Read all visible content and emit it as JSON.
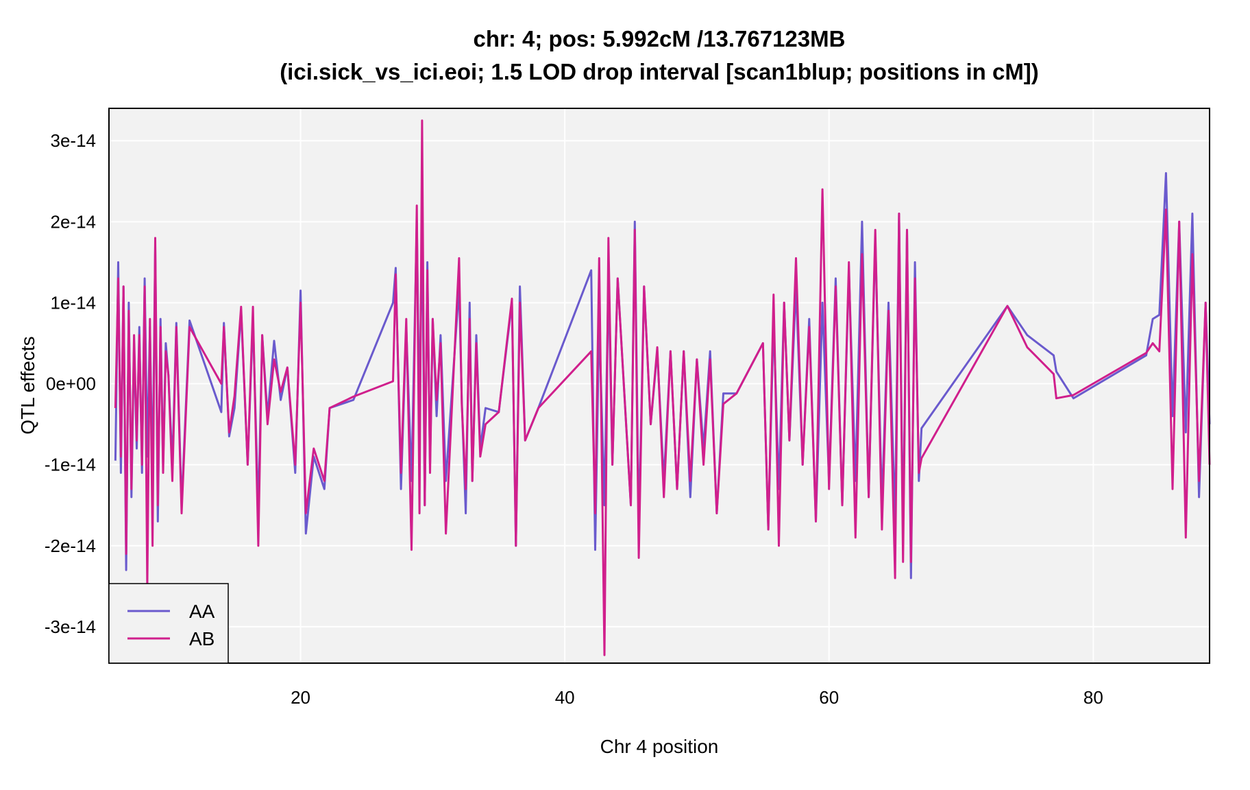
{
  "chart_data": {
    "type": "line",
    "title": "chr: 4; pos: 5.992cM /13.767123MB",
    "subtitle": "(ici.sick_vs_ici.eoi; 1.5 LOD drop interval [scan1blup; positions in cM])",
    "xlabel": "Chr 4 position",
    "ylabel": "QTL effects",
    "xlim": [
      5.5,
      88.8
    ],
    "ylim": [
      -3.45e-14,
      3.4e-14
    ],
    "x_ticks": [
      20,
      40,
      60,
      80
    ],
    "x_tick_labels": [
      "20",
      "40",
      "60",
      "80"
    ],
    "y_ticks": [
      -3e-14,
      -2e-14,
      -1e-14,
      0,
      1e-14,
      2e-14,
      3e-14
    ],
    "y_tick_labels": [
      "-3e-14",
      "-2e-14",
      "-1e-14",
      "0e+00",
      "1e-14",
      "2e-14",
      "3e-14"
    ],
    "grid": true,
    "background_color": "#f2f2f2",
    "legend_position": "bottom-left",
    "series": [
      {
        "name": "AA",
        "color": "#6a5acd",
        "x": [
          5.99,
          6.2,
          6.4,
          6.6,
          6.8,
          7.0,
          7.2,
          7.4,
          7.6,
          7.8,
          8.0,
          8.2,
          8.4,
          8.6,
          8.8,
          9.0,
          9.2,
          9.4,
          9.6,
          9.8,
          10.0,
          10.3,
          10.6,
          11.0,
          11.6,
          14.0,
          14.2,
          14.6,
          15.0,
          15.5,
          16.0,
          16.4,
          16.8,
          17.1,
          17.5,
          18.0,
          18.5,
          19.0,
          19.6,
          20.0,
          20.4,
          21.0,
          21.8,
          22.2,
          24.0,
          27.0,
          27.2,
          27.6,
          28.0,
          28.4,
          28.8,
          29.0,
          29.2,
          29.4,
          29.6,
          29.8,
          30.0,
          30.3,
          30.6,
          31.0,
          32.0,
          32.2,
          32.5,
          32.8,
          33.0,
          33.3,
          33.6,
          34.0,
          35.0,
          36.0,
          36.3,
          36.6,
          37.0,
          38.0,
          42.0,
          42.3,
          42.6,
          43.0,
          43.3,
          43.6,
          44.0,
          45.0,
          45.3,
          45.6,
          46.0,
          46.5,
          47.0,
          47.5,
          48.0,
          48.5,
          49.0,
          49.5,
          50.0,
          50.5,
          51.0,
          51.5,
          52.0,
          53.0,
          55.0,
          55.4,
          55.8,
          56.2,
          56.6,
          57.0,
          57.5,
          58.0,
          58.5,
          59.0,
          59.5,
          60.0,
          60.5,
          61.0,
          61.5,
          62.0,
          62.5,
          63.0,
          63.5,
          64.0,
          64.5,
          65.0,
          65.3,
          65.6,
          65.9,
          66.2,
          66.5,
          66.8,
          67.0,
          73.5,
          75.0,
          77.0,
          77.2,
          78.5,
          84.0,
          84.5,
          85.0,
          85.5,
          86.0,
          86.5,
          87.0,
          87.5,
          88.0,
          88.5,
          88.8
        ],
        "values": [
          -9.5e-15,
          1.5e-14,
          -1.1e-14,
          1.2e-14,
          -2.3e-14,
          1e-14,
          -1.4e-14,
          5e-15,
          -8e-15,
          7e-15,
          -1.1e-14,
          1.3e-14,
          -9e-15,
          7e-15,
          -1.2e-14,
          1.7e-14,
          -1.7e-14,
          8e-15,
          -1e-14,
          5e-15,
          1e-15,
          -1e-14,
          7.5e-15,
          -1.5e-14,
          7.8e-15,
          -3.5e-15,
          7.5e-15,
          -6.5e-15,
          -3e-15,
          9e-15,
          -1e-14,
          8e-15,
          -1.6e-14,
          6e-15,
          -4e-15,
          5.3e-15,
          -2e-15,
          2e-15,
          -1.1e-14,
          1.15e-14,
          -1.85e-14,
          -9e-15,
          -1.3e-14,
          -3e-15,
          -2e-15,
          1e-14,
          1.43e-14,
          -1.3e-14,
          7e-15,
          -1.2e-14,
          2e-14,
          -5e-15,
          2.1e-14,
          -1.5e-14,
          1.5e-14,
          -1e-14,
          8e-15,
          -4e-15,
          6e-15,
          -1.2e-14,
          1.2e-14,
          -2e-15,
          -1.6e-14,
          1e-14,
          -1.2e-14,
          6e-15,
          -8e-15,
          -3e-15,
          -3.5e-15,
          1e-14,
          -2e-14,
          1.2e-14,
          -7e-15,
          -3e-15,
          1.4e-14,
          -2.05e-14,
          8e-15,
          -1.5e-14,
          1.3e-14,
          -1e-14,
          1.3e-14,
          -1.5e-14,
          2e-14,
          -1.8e-14,
          1.2e-14,
          -5e-15,
          4e-15,
          -1.2e-14,
          4e-15,
          -1.3e-14,
          4e-15,
          -1.4e-14,
          3e-15,
          -8e-15,
          4e-15,
          -1.6e-14,
          -1.2e-15,
          -1.2e-15,
          5e-15,
          -1.8e-14,
          8e-15,
          -1.3e-14,
          1e-14,
          -7e-15,
          1.2e-14,
          -1e-14,
          8e-15,
          -1.7e-14,
          1e-14,
          -1.2e-14,
          1.3e-14,
          -1.5e-14,
          1.4e-14,
          -1.2e-14,
          2e-14,
          -1.4e-14,
          1.8e-14,
          -1.5e-14,
          1e-14,
          -1.7e-14,
          2.1e-14,
          -1.9e-14,
          1.9e-14,
          -2.4e-14,
          1.5e-14,
          -1.2e-14,
          -5.5e-15,
          9.6e-15,
          6e-15,
          3.5e-15,
          1.5e-15,
          -1.8e-15,
          3.5e-15,
          8e-15,
          8.5e-15,
          2.6e-14,
          -4e-15,
          2e-14,
          -6e-15,
          2.1e-14,
          -1.4e-14,
          1e-14,
          -5e-15
        ],
        "legend_label": "AA"
      },
      {
        "name": "AB",
        "color": "#d01f8c",
        "x": [
          5.99,
          6.2,
          6.4,
          6.6,
          6.8,
          7.0,
          7.2,
          7.4,
          7.6,
          7.8,
          8.0,
          8.2,
          8.4,
          8.6,
          8.8,
          9.0,
          9.2,
          9.4,
          9.6,
          9.8,
          10.0,
          10.3,
          10.6,
          11.0,
          11.6,
          14.0,
          14.2,
          14.6,
          15.0,
          15.5,
          16.0,
          16.4,
          16.8,
          17.1,
          17.5,
          18.0,
          18.5,
          19.0,
          19.6,
          20.0,
          20.4,
          21.0,
          21.8,
          22.2,
          24.0,
          27.0,
          27.2,
          27.6,
          28.0,
          28.4,
          28.8,
          29.0,
          29.2,
          29.4,
          29.6,
          29.8,
          30.0,
          30.3,
          30.6,
          31.0,
          32.0,
          32.2,
          32.5,
          32.8,
          33.0,
          33.3,
          33.6,
          34.0,
          35.0,
          36.0,
          36.3,
          36.6,
          37.0,
          38.0,
          42.0,
          42.3,
          42.6,
          43.0,
          43.3,
          43.6,
          44.0,
          45.0,
          45.3,
          45.6,
          46.0,
          46.5,
          47.0,
          47.5,
          48.0,
          48.5,
          49.0,
          49.5,
          50.0,
          50.5,
          51.0,
          51.5,
          52.0,
          53.0,
          55.0,
          55.4,
          55.8,
          56.2,
          56.6,
          57.0,
          57.5,
          58.0,
          58.5,
          59.0,
          59.5,
          60.0,
          60.5,
          61.0,
          61.5,
          62.0,
          62.5,
          63.0,
          63.5,
          64.0,
          64.5,
          65.0,
          65.3,
          65.6,
          65.9,
          66.2,
          66.5,
          66.8,
          67.0,
          73.5,
          75.0,
          77.0,
          77.2,
          78.5,
          84.0,
          84.5,
          85.0,
          85.5,
          86.0,
          86.5,
          87.0,
          87.5,
          88.0,
          88.5,
          88.8
        ],
        "values": [
          -3e-15,
          1.3e-14,
          -9e-15,
          1.2e-14,
          -2.1e-14,
          9e-15,
          -1.3e-14,
          6e-15,
          -7e-15,
          6e-15,
          -1e-14,
          1.2e-14,
          -2.5e-14,
          8e-15,
          -2e-14,
          1.8e-14,
          -1.5e-14,
          7e-15,
          -1.1e-14,
          4e-15,
          1e-15,
          -1.2e-14,
          7e-15,
          -1.6e-14,
          7e-15,
          0,
          7e-15,
          -6e-15,
          -1.5e-15,
          9.5e-15,
          -1e-14,
          9.5e-15,
          -2e-14,
          6e-15,
          -5e-15,
          3e-15,
          -1e-15,
          2e-15,
          -1e-14,
          1e-14,
          -1.6e-14,
          -8e-15,
          -1.2e-14,
          -3e-15,
          -1.6e-15,
          3e-16,
          1.35e-14,
          -1.1e-14,
          8e-15,
          -2.05e-14,
          2.2e-14,
          -1.6e-14,
          3.25e-14,
          -1.5e-14,
          1.4e-14,
          -1.1e-14,
          8e-15,
          -2e-15,
          5e-15,
          -1.85e-14,
          1.55e-14,
          -2.5e-15,
          -1.3e-14,
          8e-15,
          -1.2e-14,
          5e-15,
          -9e-15,
          -5e-15,
          -3.5e-15,
          1.05e-14,
          -2e-14,
          1e-14,
          -7e-15,
          -3e-15,
          4e-15,
          -1.6e-14,
          1.55e-14,
          -3.35e-14,
          1.8e-14,
          -1e-14,
          1.3e-14,
          -1.5e-14,
          1.9e-14,
          -2.15e-14,
          1.2e-14,
          -5e-15,
          4.5e-15,
          -1.4e-14,
          4e-15,
          -1.3e-14,
          4e-15,
          -1.2e-14,
          3e-15,
          -1e-14,
          3e-15,
          -1.6e-14,
          -2.5e-15,
          -1.2e-15,
          5e-15,
          -1.8e-14,
          1.1e-14,
          -2e-14,
          1e-14,
          -7e-15,
          1.55e-14,
          -1e-14,
          7e-15,
          -1.7e-14,
          2.4e-14,
          -1.3e-14,
          1.2e-14,
          -1.5e-14,
          1.5e-14,
          -1.9e-14,
          1.6e-14,
          -1.4e-14,
          1.9e-14,
          -1.8e-14,
          9e-15,
          -2.4e-14,
          2.1e-14,
          -2.2e-14,
          1.9e-14,
          -2.2e-14,
          1.3e-14,
          -1.1e-14,
          -9.2e-15,
          9.6e-15,
          4.5e-15,
          1.2e-15,
          -1.8e-15,
          -1.4e-15,
          3.8e-15,
          5e-15,
          4e-15,
          2.15e-14,
          -1.3e-14,
          2e-14,
          -1.9e-14,
          1.6e-14,
          -1.2e-14,
          1e-14,
          -1e-14
        ],
        "legend_label": "AB"
      }
    ]
  }
}
